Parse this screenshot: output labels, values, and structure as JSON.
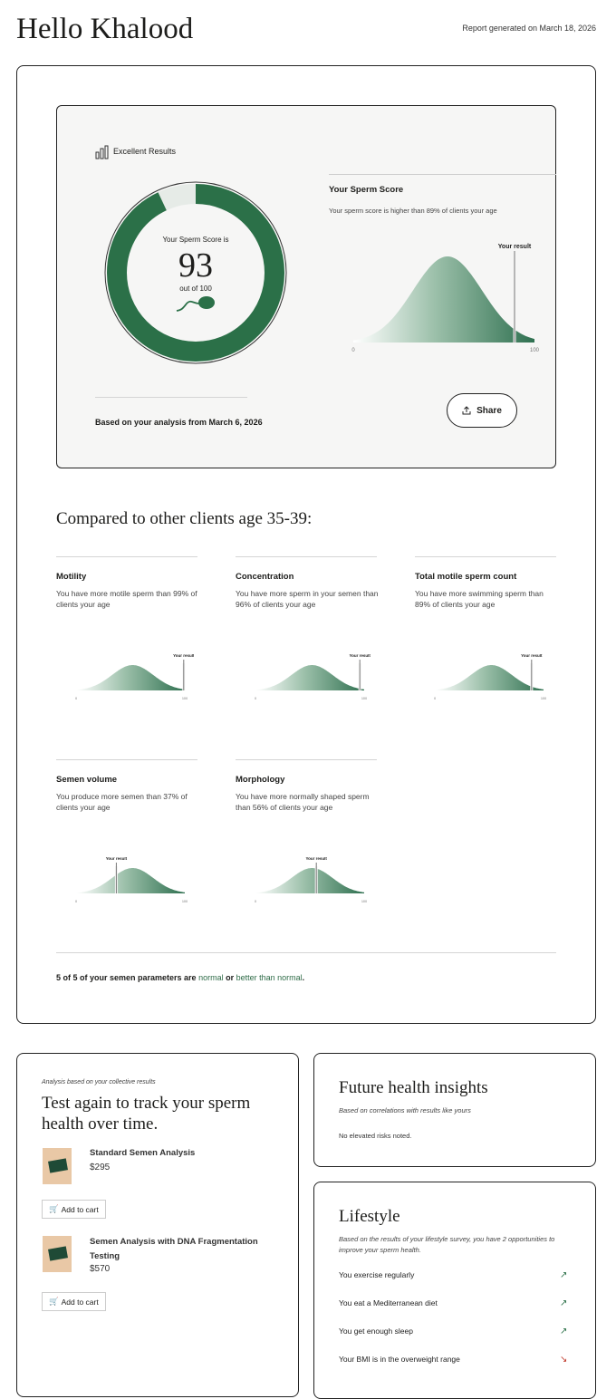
{
  "header": {
    "greeting": "Hello Khalood",
    "report_date": "Report generated on March 18, 2026"
  },
  "score_card": {
    "badge": "Excellent Results",
    "badge_icon": "bar-chart-icon",
    "donut_label": "Your Sperm Score is",
    "score": "93",
    "out_of": "out of 100",
    "score_value": 93,
    "score_max": 100,
    "chart_title": "Your Sperm Score",
    "chart_desc": "Your sperm score is higher than 89% of clients your age",
    "result_label": "Your result",
    "axis_min": "0",
    "axis_max": "100",
    "percentile": 89,
    "analysis_date": "Based on your analysis from March 6, 2026",
    "share_label": "Share",
    "colors": {
      "accent": "#2b7048",
      "track": "#e6ebe7"
    }
  },
  "comparison": {
    "title": "Compared to other clients age 35-39:",
    "metrics": [
      {
        "title": "Motility",
        "desc": "You have more motile sperm than 99% of clients your age",
        "percentile": 99
      },
      {
        "title": "Concentration",
        "desc": "You have more sperm in your semen than 96% of clients your age",
        "percentile": 96
      },
      {
        "title": "Total motile sperm count",
        "desc": "You have more swimming sperm than 89% of clients your age",
        "percentile": 89
      },
      {
        "title": "Semen volume",
        "desc": "You produce more semen than 37% of clients your age",
        "percentile": 37
      },
      {
        "title": "Morphology",
        "desc": "You have more normally shaped sperm than 56% of clients your age",
        "percentile": 56
      }
    ],
    "result_label": "Your result",
    "axis_min": "0",
    "axis_max": "100",
    "summary_prefix": "5 of 5 of your semen parameters are ",
    "summary_normal": "normal",
    "summary_or": " or ",
    "summary_better": "better than normal",
    "summary_end": "."
  },
  "test_again": {
    "kicker": "Analysis based on your collective results",
    "title": "Test again to track your sperm health over time.",
    "products": [
      {
        "name": "Standard Semen Analysis",
        "price": "$295",
        "cta": "Add to cart"
      },
      {
        "name": "Semen Analysis with DNA Fragmentation Testing",
        "price": "$570",
        "cta": "Add to cart"
      }
    ]
  },
  "future": {
    "title": "Future health insights",
    "subtitle": "Based on correlations with results like yours",
    "body": "No elevated risks noted."
  },
  "lifestyle": {
    "title": "Lifestyle",
    "subtitle": "Based on the results of your lifestyle survey, you have 2 opportunities to improve your sperm health.",
    "items": [
      {
        "label": "You exercise regularly",
        "trend": "up",
        "icon": "↗",
        "color": "#2b7048"
      },
      {
        "label": "You eat a Mediterranean diet",
        "trend": "up",
        "icon": "↗",
        "color": "#2b7048"
      },
      {
        "label": "You get enough sleep",
        "trend": "up",
        "icon": "↗",
        "color": "#2b7048"
      },
      {
        "label": "Your BMI is in the overweight range",
        "trend": "down",
        "icon": "↘",
        "color": "#c0392b"
      }
    ]
  }
}
